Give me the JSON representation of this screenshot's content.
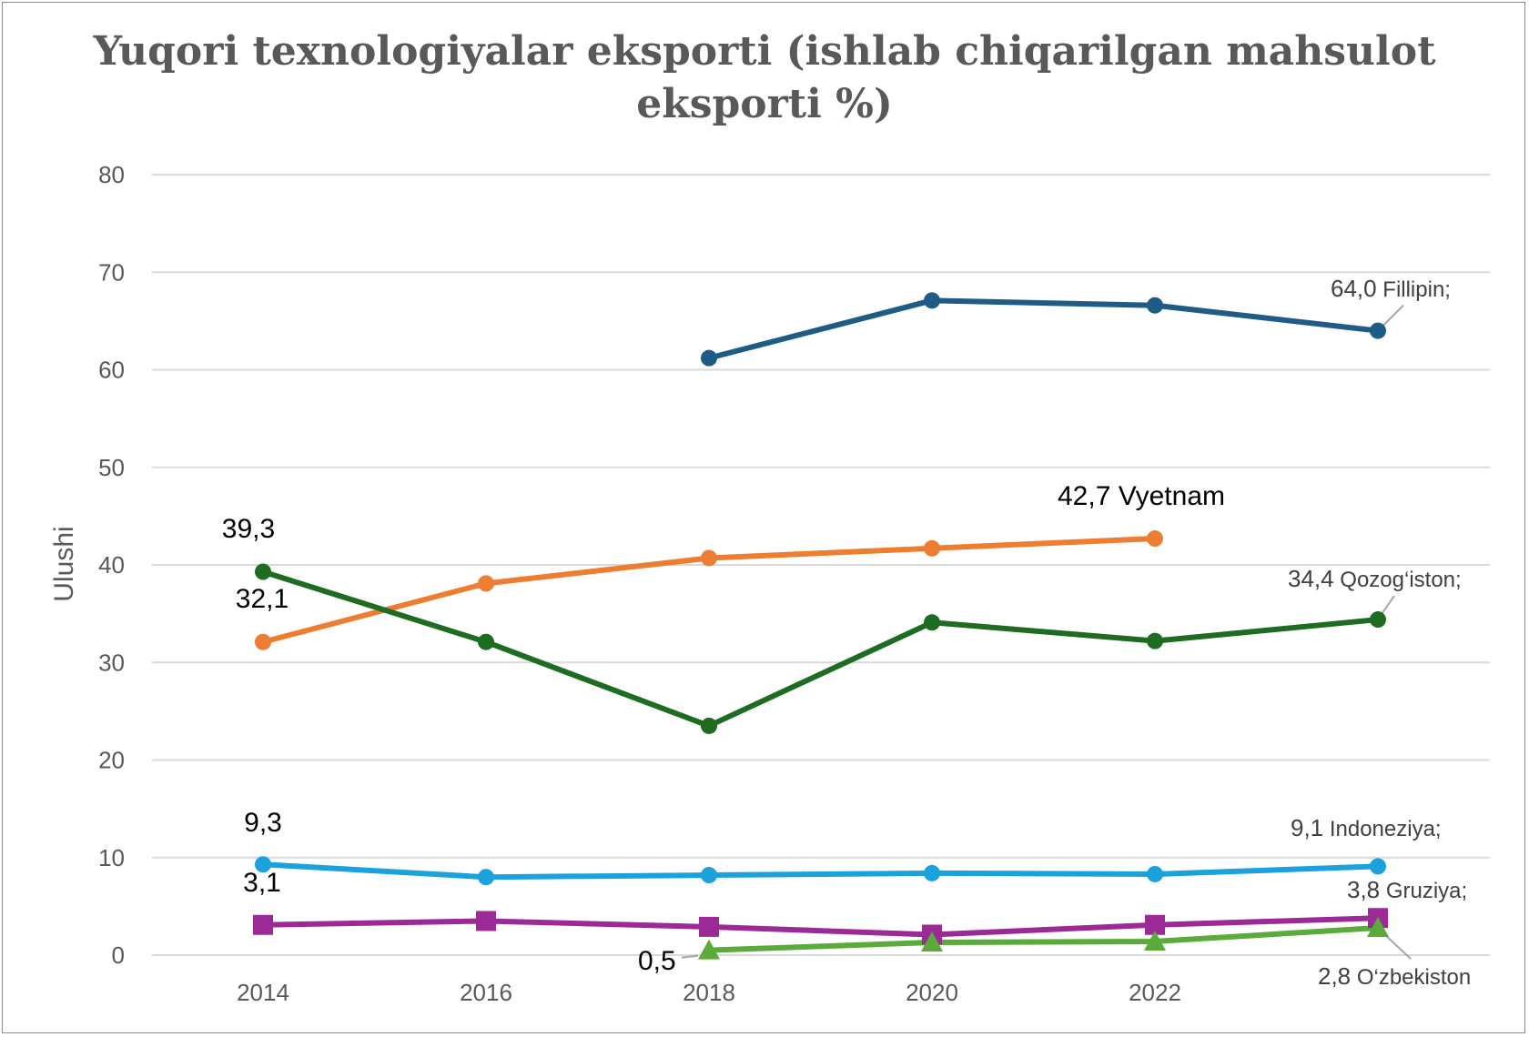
{
  "chart_data": {
    "type": "line",
    "title_line1": "Yuqori texnologiyalar  eksporti (ishlab chiqarilgan mahsulot",
    "title_line2": "eksporti %)",
    "ylabel": "Ulushi",
    "xlabel": "",
    "x": [
      2014,
      2016,
      2018,
      2020,
      2022,
      2024
    ],
    "x_tick_labels": [
      "2014",
      "2016",
      "2018",
      "2020",
      "2022"
    ],
    "y_ticks": [
      0,
      10,
      20,
      30,
      40,
      50,
      60,
      70,
      80
    ],
    "ylim": [
      0,
      80
    ],
    "grid": true,
    "series": [
      {
        "id": "fillipin",
        "color": "#1f5c85",
        "marker": "circle",
        "values": [
          null,
          null,
          61.2,
          67.1,
          66.6,
          64.0
        ]
      },
      {
        "id": "vyetnam",
        "color": "#ed7d31",
        "marker": "circle",
        "values": [
          32.1,
          38.1,
          40.7,
          41.7,
          42.7,
          null
        ]
      },
      {
        "id": "qozogiston",
        "color": "#1e6b22",
        "marker": "circle",
        "values": [
          39.3,
          32.1,
          23.5,
          34.1,
          32.2,
          34.4
        ]
      },
      {
        "id": "indoneziya",
        "color": "#1ba1dc",
        "marker": "circle",
        "values": [
          9.3,
          8.0,
          8.2,
          8.4,
          8.3,
          9.1
        ]
      },
      {
        "id": "gruziya",
        "color": "#9b2a96",
        "marker": "square",
        "values": [
          3.1,
          3.5,
          2.9,
          2.1,
          3.1,
          3.8
        ]
      },
      {
        "id": "ozbekiston",
        "color": "#5aab3a",
        "marker": "triangle",
        "values": [
          null,
          null,
          0.5,
          1.3,
          1.4,
          2.8
        ]
      }
    ],
    "data_labels": [
      {
        "id": "lbl-fillipin",
        "value": "64,0",
        "text": " Fillipin;",
        "series": "fillipin"
      },
      {
        "id": "lbl-vyetnam",
        "value": "42,7",
        "text": " Vyetnam",
        "series": "vyetnam"
      },
      {
        "id": "lbl-qozogiston",
        "value": "34,4",
        "text": " Qozog‘iston;",
        "series": "qozogiston"
      },
      {
        "id": "lbl-indoneziya",
        "value": "9,1",
        "text": " Indoneziya;",
        "series": "indoneziya"
      },
      {
        "id": "lbl-gruziya",
        "value": "3,8",
        "text": " Gruziya;",
        "series": "gruziya"
      },
      {
        "id": "lbl-ozbekiston",
        "value": "2,8",
        "text": " O‘zbekiston",
        "series": "ozbekiston"
      },
      {
        "id": "lbl-qoz-2014",
        "value": "39,3",
        "text": "",
        "series": "qozogiston"
      },
      {
        "id": "lbl-vyet-2014",
        "value": "32,1",
        "text": "",
        "series": "vyetnam"
      },
      {
        "id": "lbl-indo-2014",
        "value": "9,3",
        "text": "",
        "series": "indoneziya"
      },
      {
        "id": "lbl-gruz-2014",
        "value": "3,1",
        "text": "",
        "series": "gruziya"
      },
      {
        "id": "lbl-ozb-2018",
        "value": "0,5",
        "text": "",
        "series": "ozbekiston"
      }
    ]
  }
}
